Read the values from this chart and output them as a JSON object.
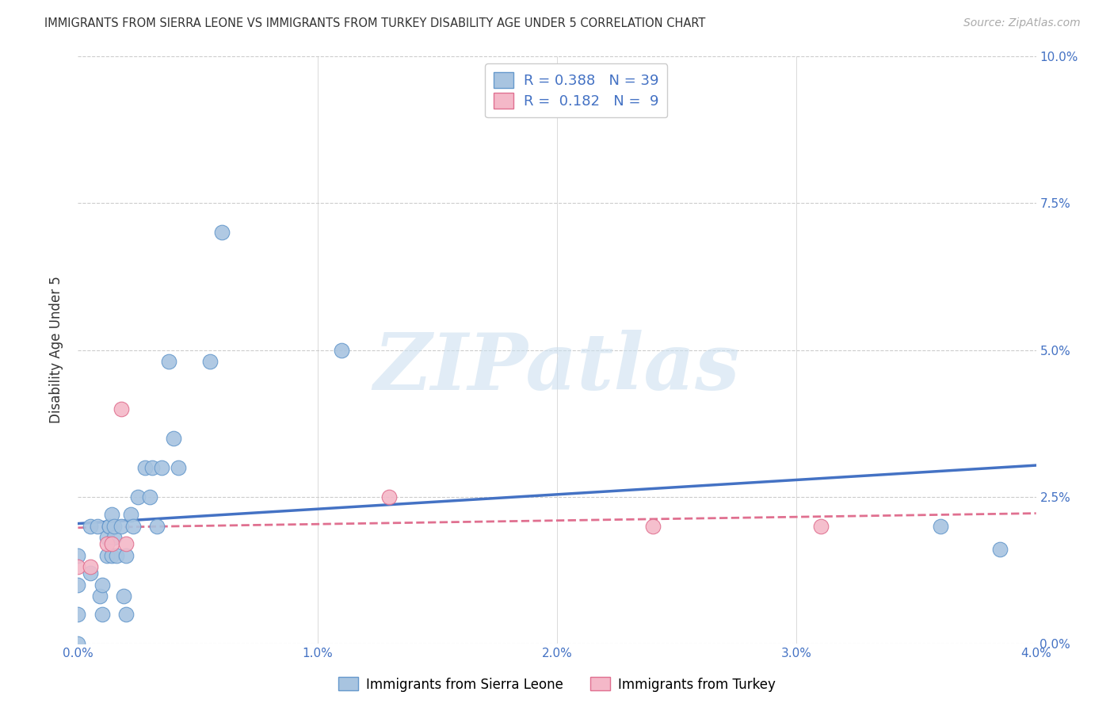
{
  "title": "IMMIGRANTS FROM SIERRA LEONE VS IMMIGRANTS FROM TURKEY DISABILITY AGE UNDER 5 CORRELATION CHART",
  "source": "Source: ZipAtlas.com",
  "ylabel": "Disability Age Under 5",
  "xlabel_ticks": [
    "0.0%",
    "1.0%",
    "2.0%",
    "3.0%",
    "4.0%"
  ],
  "ylabel_ticks": [
    "0.0%",
    "2.5%",
    "5.0%",
    "7.5%",
    "10.0%"
  ],
  "xlim": [
    0.0,
    0.04
  ],
  "ylim": [
    0.0,
    0.1
  ],
  "sierra_leone_x": [
    0.0,
    0.0,
    0.0,
    0.0,
    0.0005,
    0.0005,
    0.0008,
    0.0009,
    0.001,
    0.001,
    0.0012,
    0.0012,
    0.0013,
    0.0013,
    0.0014,
    0.0014,
    0.0015,
    0.0015,
    0.0016,
    0.0018,
    0.0019,
    0.002,
    0.002,
    0.0022,
    0.0023,
    0.0025,
    0.0028,
    0.003,
    0.0031,
    0.0033,
    0.0035,
    0.0038,
    0.004,
    0.0042,
    0.0055,
    0.006,
    0.011,
    0.036,
    0.0385
  ],
  "sierra_leone_y": [
    0.0,
    0.005,
    0.01,
    0.015,
    0.02,
    0.012,
    0.02,
    0.008,
    0.005,
    0.01,
    0.015,
    0.018,
    0.02,
    0.02,
    0.015,
    0.022,
    0.018,
    0.02,
    0.015,
    0.02,
    0.008,
    0.005,
    0.015,
    0.022,
    0.02,
    0.025,
    0.03,
    0.025,
    0.03,
    0.02,
    0.03,
    0.048,
    0.035,
    0.03,
    0.048,
    0.07,
    0.05,
    0.02,
    0.016
  ],
  "turkey_x": [
    0.0,
    0.0005,
    0.0012,
    0.0014,
    0.0018,
    0.002,
    0.013,
    0.024,
    0.031
  ],
  "turkey_y": [
    0.013,
    0.013,
    0.017,
    0.017,
    0.04,
    0.017,
    0.025,
    0.02,
    0.02
  ],
  "sierra_leone_color": "#a8c4e0",
  "sierra_leone_edge": "#6699cc",
  "turkey_color": "#f4b8c8",
  "turkey_edge": "#e07090",
  "sl_R": 0.388,
  "sl_N": 39,
  "tk_R": 0.182,
  "tk_N": 9,
  "sl_line_color": "#4472c4",
  "tk_line_color": "#e07090",
  "watermark": "ZIPatlas",
  "background_color": "#ffffff",
  "grid_color": "#cccccc"
}
